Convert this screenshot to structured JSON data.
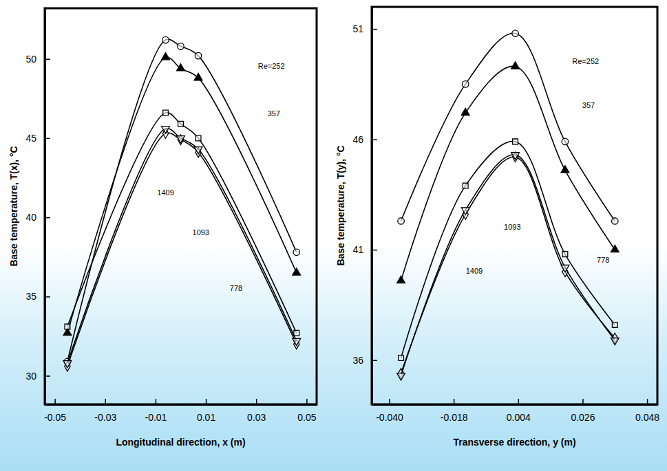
{
  "chart_data": [
    {
      "type": "line",
      "x_label": "Longitudinal direction, x (m)",
      "y_label": "Base temperature, T(x), °C",
      "xlim": [
        -0.054,
        0.054
      ],
      "xticks": [
        -0.05,
        -0.03,
        -0.01,
        0.01,
        0.03,
        0.05
      ],
      "ylim": [
        28.2,
        53.2
      ],
      "yticks": [
        30,
        35,
        40,
        45,
        50
      ],
      "x": [
        -0.045,
        -0.006,
        0.0,
        0.007,
        0.046
      ],
      "series": [
        {
          "color": "#000000",
          "marker": "circle",
          "line_style": "solid",
          "values": [
            30.9,
            51.2,
            50.8,
            50.2,
            37.8
          ]
        },
        {
          "color": "#000000",
          "marker": "triangle",
          "line_style": "solid",
          "values": [
            32.7,
            50.1,
            49.4,
            48.8,
            36.5
          ]
        },
        {
          "color": "#000000",
          "marker": "square",
          "line_style": "solid",
          "values": [
            33.1,
            46.6,
            45.9,
            45.0,
            32.7
          ]
        },
        {
          "color": "#000000",
          "marker": "diamond",
          "line_style": "solid",
          "values": [
            30.6,
            45.3,
            44.9,
            44.1,
            32.0
          ]
        },
        {
          "color": "#000000",
          "marker": "triangle-down",
          "line_style": "solid",
          "values": [
            30.8,
            45.6,
            45.0,
            44.3,
            32.2
          ]
        }
      ],
      "annotations": [
        {
          "text": "Re=252",
          "x": 0.036,
          "y": 49.5
        },
        {
          "text": "357",
          "x": 0.037,
          "y": 46.5
        },
        {
          "text": "778",
          "x": 0.022,
          "y": 35.5
        },
        {
          "text": "1093",
          "x": 0.008,
          "y": 39.0
        },
        {
          "text": "1409",
          "x": -0.006,
          "y": 41.5
        }
      ]
    },
    {
      "type": "line",
      "x_label": "Transverse direction, y (m)",
      "y_label": "Base temperature, T(y), °C",
      "xlim": [
        -0.046,
        0.0515
      ],
      "xticks": [
        {
          "value": -0.04,
          "label": "-0.040"
        },
        -0.018,
        0.004,
        0.026,
        0.048
      ],
      "ylim": [
        34.0,
        52.0
      ],
      "yticks": [
        36,
        41,
        46,
        51
      ],
      "x": [
        -0.036,
        -0.014,
        0.003,
        0.02,
        0.037
      ],
      "series": [
        {
          "color": "#000000",
          "marker": "circle",
          "line_style": "solid",
          "values": [
            42.3,
            48.5,
            50.8,
            45.9,
            42.3
          ]
        },
        {
          "color": "#000000",
          "marker": "triangle",
          "line_style": "solid",
          "values": [
            39.6,
            47.2,
            49.3,
            44.6,
            41.0
          ]
        },
        {
          "color": "#000000",
          "marker": "square",
          "line_style": "solid",
          "values": [
            36.1,
            43.9,
            45.9,
            40.8,
            37.6
          ]
        },
        {
          "color": "#000000",
          "marker": "diamond",
          "line_style": "solid",
          "values": [
            35.4,
            42.6,
            45.2,
            40.0,
            37.0
          ]
        },
        {
          "color": "#000000",
          "marker": "triangle-down",
          "line_style": "solid",
          "values": [
            35.3,
            42.8,
            45.3,
            40.2,
            36.9
          ]
        }
      ],
      "annotations": [
        {
          "text": "Re=252",
          "x": 0.027,
          "y": 49.5
        },
        {
          "text": "357",
          "x": 0.028,
          "y": 47.5
        },
        {
          "text": "778",
          "x": 0.033,
          "y": 40.5
        },
        {
          "text": "1093",
          "x": 0.002,
          "y": 42.0
        },
        {
          "text": "1409",
          "x": -0.011,
          "y": 40.0
        }
      ]
    }
  ]
}
